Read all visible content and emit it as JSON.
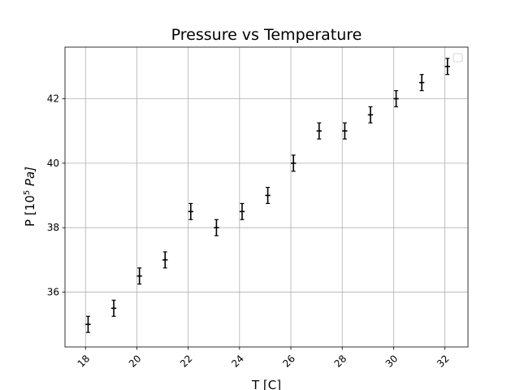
{
  "chart_data": {
    "type": "scatter",
    "title": "Pressure vs Temperature",
    "xlabel": "T [C]",
    "ylabel": {
      "prefix": "P [10",
      "sup": "5",
      "suffix": " Pa]"
    },
    "xlim": [
      17.2,
      32.9
    ],
    "ylim": [
      34.3,
      43.6
    ],
    "x_ticks": [
      18,
      20,
      22,
      24,
      26,
      28,
      30,
      32
    ],
    "y_ticks": [
      36,
      38,
      40,
      42
    ],
    "grid": true,
    "legend": {
      "placement": "top-right",
      "entries": []
    },
    "series": [
      {
        "color": "#000000",
        "marker": "errorbar",
        "x_err": 0.1,
        "y_err": 0.25,
        "points": [
          {
            "x": 18.1,
            "y": 35.0
          },
          {
            "x": 19.1,
            "y": 35.5
          },
          {
            "x": 20.1,
            "y": 36.5
          },
          {
            "x": 21.1,
            "y": 37.0
          },
          {
            "x": 22.1,
            "y": 38.5
          },
          {
            "x": 23.1,
            "y": 38.0
          },
          {
            "x": 24.1,
            "y": 38.5
          },
          {
            "x": 25.1,
            "y": 39.0
          },
          {
            "x": 26.1,
            "y": 40.0
          },
          {
            "x": 27.1,
            "y": 41.0
          },
          {
            "x": 28.1,
            "y": 41.0
          },
          {
            "x": 29.1,
            "y": 41.5
          },
          {
            "x": 30.1,
            "y": 42.0
          },
          {
            "x": 31.1,
            "y": 42.5
          },
          {
            "x": 32.1,
            "y": 43.0
          }
        ]
      }
    ]
  }
}
